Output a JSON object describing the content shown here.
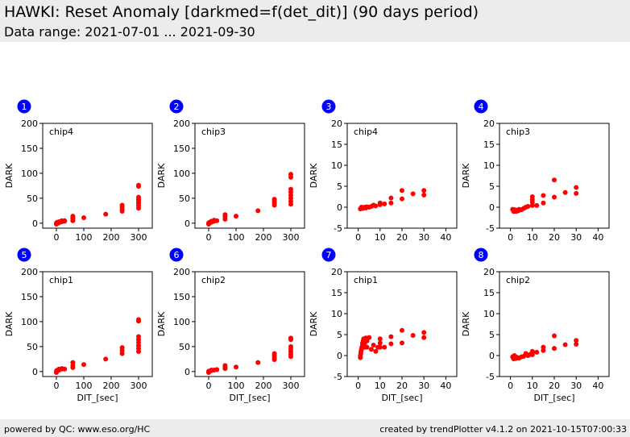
{
  "header": {
    "title": "HAWKI: Reset Anomaly [darkmed=f(det_dit)] (90 days period)",
    "subtitle": "Data range: 2021-07-01 ... 2021-09-30"
  },
  "footer": {
    "left": "powered by QC: www.eso.org/HC",
    "right": "created by trendPlotter v4.1.2 on 2021-10-15T07:00:33"
  },
  "colors": {
    "marker": "#ff0000",
    "badge": "#0000ff",
    "header_bg": "#ececec"
  },
  "chart_data": [
    {
      "number": "1",
      "label": "chip4",
      "type": "scatter",
      "xlabel": "DIT_[sec]",
      "ylabel": "DARK",
      "xlim": [
        -50,
        350
      ],
      "ylim": [
        -10,
        200
      ],
      "xticks": [
        0,
        100,
        200,
        300
      ],
      "yticks": [
        0,
        50,
        100,
        150,
        200
      ],
      "points": [
        [
          0,
          -2
        ],
        [
          0,
          0
        ],
        [
          1,
          1
        ],
        [
          2,
          -1
        ],
        [
          3,
          2
        ],
        [
          5,
          0
        ],
        [
          10,
          1
        ],
        [
          10,
          3
        ],
        [
          20,
          3
        ],
        [
          20,
          5
        ],
        [
          30,
          4
        ],
        [
          30,
          5
        ],
        [
          60,
          5
        ],
        [
          60,
          9
        ],
        [
          60,
          12
        ],
        [
          60,
          14
        ],
        [
          100,
          11
        ],
        [
          180,
          18
        ],
        [
          240,
          24
        ],
        [
          240,
          28
        ],
        [
          240,
          32
        ],
        [
          240,
          36
        ],
        [
          300,
          30
        ],
        [
          300,
          35
        ],
        [
          300,
          40
        ],
        [
          300,
          44
        ],
        [
          300,
          48
        ],
        [
          300,
          52
        ],
        [
          300,
          74
        ],
        [
          300,
          76
        ]
      ]
    },
    {
      "number": "2",
      "label": "chip3",
      "type": "scatter",
      "xlabel": "DIT_[sec]",
      "ylabel": "DARK",
      "xlim": [
        -50,
        350
      ],
      "ylim": [
        -10,
        200
      ],
      "xticks": [
        0,
        100,
        200,
        300
      ],
      "yticks": [
        0,
        50,
        100,
        150,
        200
      ],
      "points": [
        [
          0,
          -2
        ],
        [
          0,
          0
        ],
        [
          1,
          1
        ],
        [
          3,
          0
        ],
        [
          5,
          2
        ],
        [
          10,
          2
        ],
        [
          10,
          4
        ],
        [
          20,
          4
        ],
        [
          20,
          6
        ],
        [
          30,
          5
        ],
        [
          60,
          8
        ],
        [
          60,
          13
        ],
        [
          60,
          17
        ],
        [
          100,
          14
        ],
        [
          180,
          25
        ],
        [
          240,
          36
        ],
        [
          240,
          40
        ],
        [
          240,
          44
        ],
        [
          240,
          48
        ],
        [
          300,
          38
        ],
        [
          300,
          44
        ],
        [
          300,
          50
        ],
        [
          300,
          56
        ],
        [
          300,
          62
        ],
        [
          300,
          68
        ],
        [
          300,
          92
        ],
        [
          300,
          98
        ]
      ]
    },
    {
      "number": "3",
      "label": "chip4",
      "type": "scatter",
      "xlabel": "DIT_[sec]",
      "ylabel": "DARK",
      "xlim": [
        -5,
        45
      ],
      "ylim": [
        -5,
        20
      ],
      "xticks": [
        0,
        10,
        20,
        30,
        40
      ],
      "yticks": [
        -5,
        0,
        5,
        10,
        15,
        20
      ],
      "points": [
        [
          1,
          -0.4
        ],
        [
          1.3,
          -0.2
        ],
        [
          1.5,
          0
        ],
        [
          2,
          -0.3
        ],
        [
          2.5,
          -0.1
        ],
        [
          3,
          0
        ],
        [
          3.5,
          -0.2
        ],
        [
          4,
          0.1
        ],
        [
          5,
          0
        ],
        [
          6,
          0.2
        ],
        [
          7,
          0.5
        ],
        [
          8,
          0.3
        ],
        [
          10,
          0.6
        ],
        [
          10,
          1
        ],
        [
          12,
          0.8
        ],
        [
          15,
          1
        ],
        [
          15,
          2.2
        ],
        [
          20,
          2
        ],
        [
          20,
          4
        ],
        [
          25,
          3.2
        ],
        [
          30,
          2.9
        ],
        [
          30,
          4
        ]
      ]
    },
    {
      "number": "4",
      "label": "chip3",
      "type": "scatter",
      "xlabel": "DIT_[sec]",
      "ylabel": "DARK",
      "xlim": [
        -5,
        45
      ],
      "ylim": [
        -5,
        20
      ],
      "xticks": [
        0,
        10,
        20,
        30,
        40
      ],
      "yticks": [
        -5,
        0,
        5,
        10,
        15,
        20
      ],
      "points": [
        [
          1,
          -0.5
        ],
        [
          1.3,
          -0.8
        ],
        [
          1.5,
          -1
        ],
        [
          2,
          -0.6
        ],
        [
          2.5,
          -1
        ],
        [
          3,
          -0.7
        ],
        [
          3.5,
          -0.9
        ],
        [
          4,
          -0.5
        ],
        [
          5,
          -0.6
        ],
        [
          6,
          -0.3
        ],
        [
          7,
          0
        ],
        [
          8,
          0.2
        ],
        [
          10,
          0.4
        ],
        [
          10,
          1.2
        ],
        [
          10,
          1.8
        ],
        [
          10,
          2.5
        ],
        [
          12,
          0.4
        ],
        [
          15,
          1
        ],
        [
          15,
          2.8
        ],
        [
          20,
          2.4
        ],
        [
          20,
          6.5
        ],
        [
          25,
          3.5
        ],
        [
          30,
          3.3
        ],
        [
          30,
          4.7
        ]
      ]
    },
    {
      "number": "5",
      "label": "chip1",
      "type": "scatter",
      "xlabel": "DIT_[sec]",
      "ylabel": "DARK",
      "xlim": [
        -50,
        350
      ],
      "ylim": [
        -10,
        200
      ],
      "xticks": [
        0,
        100,
        200,
        300
      ],
      "yticks": [
        0,
        50,
        100,
        150,
        200
      ],
      "points": [
        [
          0,
          -2
        ],
        [
          0,
          0
        ],
        [
          1,
          2
        ],
        [
          3,
          1
        ],
        [
          5,
          3
        ],
        [
          10,
          3
        ],
        [
          10,
          5
        ],
        [
          20,
          5
        ],
        [
          20,
          6
        ],
        [
          30,
          5
        ],
        [
          60,
          8
        ],
        [
          60,
          12
        ],
        [
          60,
          18
        ],
        [
          100,
          14
        ],
        [
          180,
          25
        ],
        [
          240,
          36
        ],
        [
          240,
          42
        ],
        [
          240,
          48
        ],
        [
          300,
          40
        ],
        [
          300,
          46
        ],
        [
          300,
          52
        ],
        [
          300,
          58
        ],
        [
          300,
          64
        ],
        [
          300,
          70
        ],
        [
          300,
          101
        ],
        [
          300,
          104
        ]
      ]
    },
    {
      "number": "6",
      "label": "chip2",
      "type": "scatter",
      "xlabel": "DIT_[sec]",
      "ylabel": "DARK",
      "xlim": [
        -50,
        350
      ],
      "ylim": [
        -10,
        200
      ],
      "xticks": [
        0,
        100,
        200,
        300
      ],
      "yticks": [
        0,
        50,
        100,
        150,
        200
      ],
      "points": [
        [
          0,
          -2
        ],
        [
          0,
          0
        ],
        [
          1,
          1
        ],
        [
          3,
          0
        ],
        [
          5,
          1
        ],
        [
          10,
          2
        ],
        [
          10,
          3
        ],
        [
          20,
          3
        ],
        [
          30,
          4
        ],
        [
          60,
          6
        ],
        [
          60,
          9
        ],
        [
          60,
          12
        ],
        [
          100,
          9
        ],
        [
          180,
          18
        ],
        [
          240,
          24
        ],
        [
          240,
          28
        ],
        [
          240,
          32
        ],
        [
          240,
          36
        ],
        [
          300,
          30
        ],
        [
          300,
          35
        ],
        [
          300,
          40
        ],
        [
          300,
          45
        ],
        [
          300,
          50
        ],
        [
          300,
          64
        ],
        [
          300,
          67
        ]
      ]
    },
    {
      "number": "7",
      "label": "chip1",
      "type": "scatter",
      "xlabel": "DIT_[sec]",
      "ylabel": "DARK",
      "xlim": [
        -5,
        45
      ],
      "ylim": [
        -5,
        20
      ],
      "xticks": [
        0,
        10,
        20,
        30,
        40
      ],
      "yticks": [
        -5,
        0,
        5,
        10,
        15,
        20
      ],
      "points": [
        [
          1,
          -0.5
        ],
        [
          1,
          0
        ],
        [
          1.2,
          0.5
        ],
        [
          1.3,
          1
        ],
        [
          1.5,
          1.5
        ],
        [
          1.7,
          2
        ],
        [
          2,
          2.5
        ],
        [
          2,
          3
        ],
        [
          2.3,
          3.5
        ],
        [
          2.5,
          4
        ],
        [
          3,
          2
        ],
        [
          3,
          3
        ],
        [
          3.5,
          4.2
        ],
        [
          4,
          2
        ],
        [
          4,
          3.5
        ],
        [
          5,
          4.3
        ],
        [
          6,
          1.5
        ],
        [
          7,
          2.5
        ],
        [
          8,
          1
        ],
        [
          9,
          2
        ],
        [
          10,
          2
        ],
        [
          10,
          3
        ],
        [
          10,
          4
        ],
        [
          12,
          2
        ],
        [
          15,
          2.8
        ],
        [
          15,
          4.5
        ],
        [
          20,
          3
        ],
        [
          20,
          6
        ],
        [
          25,
          4.8
        ],
        [
          30,
          4.3
        ],
        [
          30,
          5.5
        ]
      ]
    },
    {
      "number": "8",
      "label": "chip2",
      "type": "scatter",
      "xlabel": "DIT_[sec]",
      "ylabel": "DARK",
      "xlim": [
        -5,
        45
      ],
      "ylim": [
        -5,
        20
      ],
      "xticks": [
        0,
        10,
        20,
        30,
        40
      ],
      "yticks": [
        -5,
        0,
        5,
        10,
        15,
        20
      ],
      "points": [
        [
          1,
          -0.3
        ],
        [
          1.3,
          -0.6
        ],
        [
          1.5,
          -0.8
        ],
        [
          1.8,
          0
        ],
        [
          2,
          -0.5
        ],
        [
          2.5,
          -0.7
        ],
        [
          3,
          -0.4
        ],
        [
          4,
          -0.6
        ],
        [
          5,
          -0.3
        ],
        [
          6,
          -0.2
        ],
        [
          7,
          0.5
        ],
        [
          8,
          0
        ],
        [
          9,
          0.3
        ],
        [
          10,
          0.2
        ],
        [
          10,
          0.6
        ],
        [
          10,
          1
        ],
        [
          12,
          0.8
        ],
        [
          15,
          1.2
        ],
        [
          15,
          2
        ],
        [
          20,
          1.7
        ],
        [
          20,
          4.7
        ],
        [
          25,
          2.6
        ],
        [
          30,
          2.7
        ],
        [
          30,
          3.6
        ]
      ]
    }
  ]
}
